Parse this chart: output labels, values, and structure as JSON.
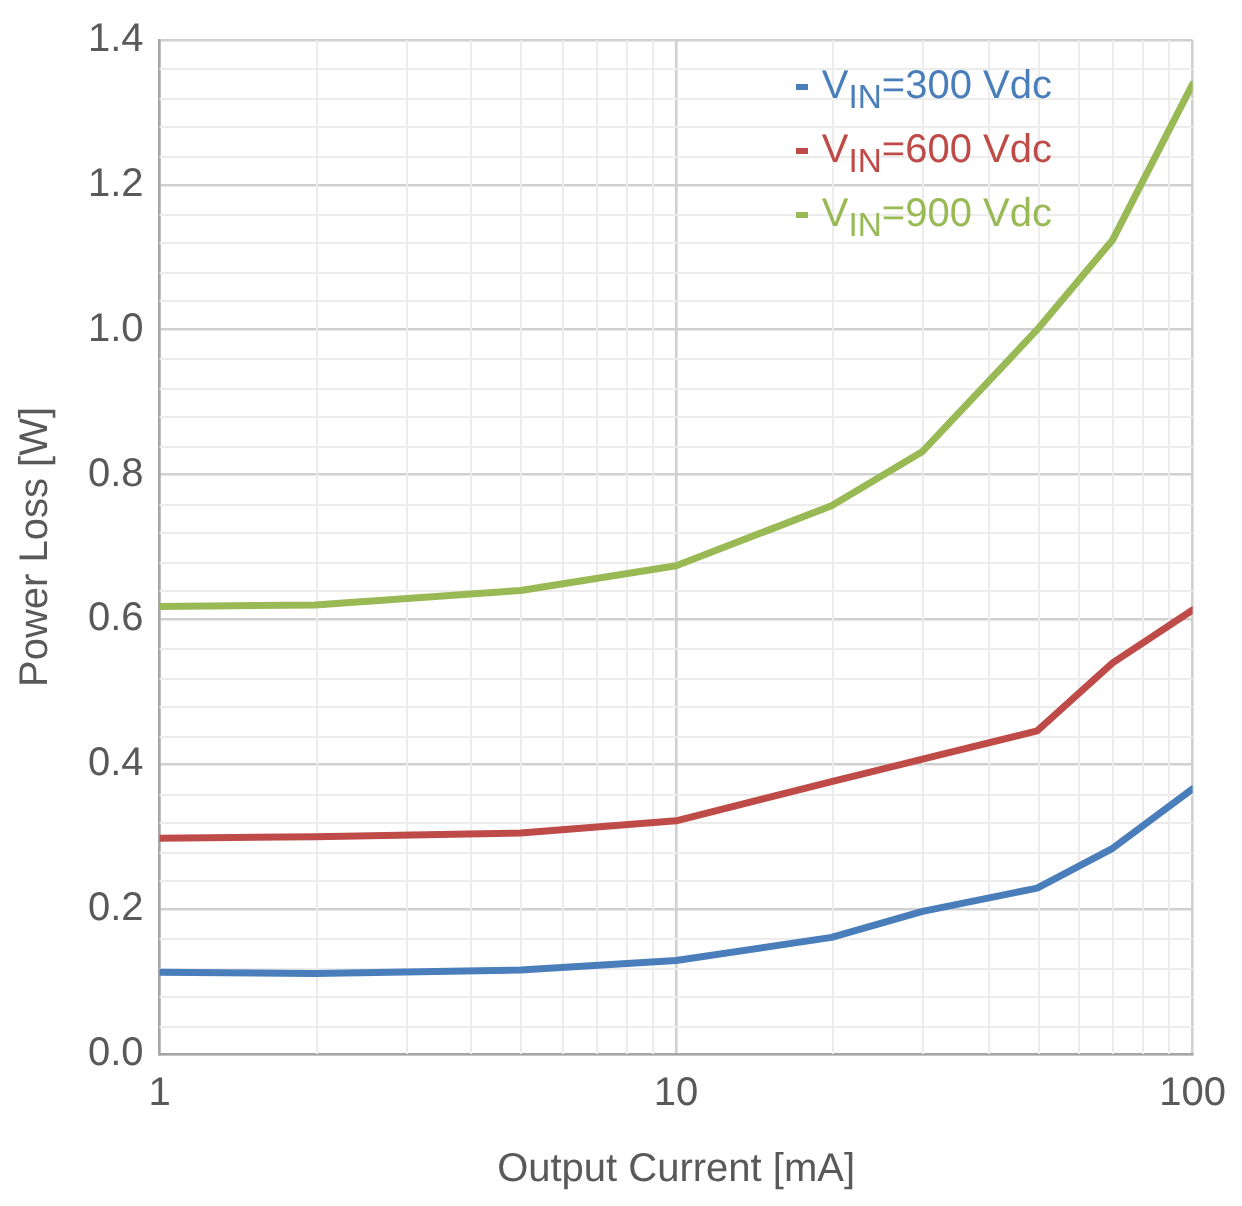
{
  "chart_data": {
    "type": "line",
    "xlabel": "Output Current [mA]",
    "ylabel": "Power Loss [W]",
    "x": [
      1,
      2,
      5,
      10,
      20,
      30,
      50,
      70,
      100
    ],
    "series": [
      {
        "name": "V$_{IN}$=300 Vdc",
        "color": "#4a7ebb",
        "values": [
          0.113,
          0.111,
          0.116,
          0.129,
          0.161,
          0.197,
          0.229,
          0.284,
          0.366
        ]
      },
      {
        "name": "V$_{IN}$=600 Vdc",
        "color": "#be4b48",
        "values": [
          0.298,
          0.3,
          0.305,
          0.322,
          0.376,
          0.407,
          0.446,
          0.54,
          0.613
        ]
      },
      {
        "name": "V$_{IN}$=900 Vdc",
        "color": "#98b954",
        "values": [
          0.618,
          0.62,
          0.64,
          0.674,
          0.757,
          0.832,
          1.0,
          1.124,
          1.339
        ]
      }
    ],
    "log": "x",
    "xlim": [
      1,
      100
    ],
    "xticks": [
      1,
      10,
      100
    ],
    "ylim": [
      0,
      1.4
    ],
    "yticks": [
      {
        "value": 0,
        "label": "0.0"
      },
      {
        "value": 0.2,
        "label": "0.2"
      },
      {
        "value": 0.4,
        "label": "0.4"
      },
      {
        "value": 0.6,
        "label": "0.6"
      },
      {
        "value": 0.8,
        "label": "0.8"
      },
      {
        "value": 1,
        "label": "1.0"
      },
      {
        "value": 1.2,
        "label": "1.2"
      },
      {
        "value": 1.4,
        "label": "1.4"
      }
    ],
    "grid": true,
    "legend": "top right",
    "marker": "none",
    "line_style": "solid"
  }
}
